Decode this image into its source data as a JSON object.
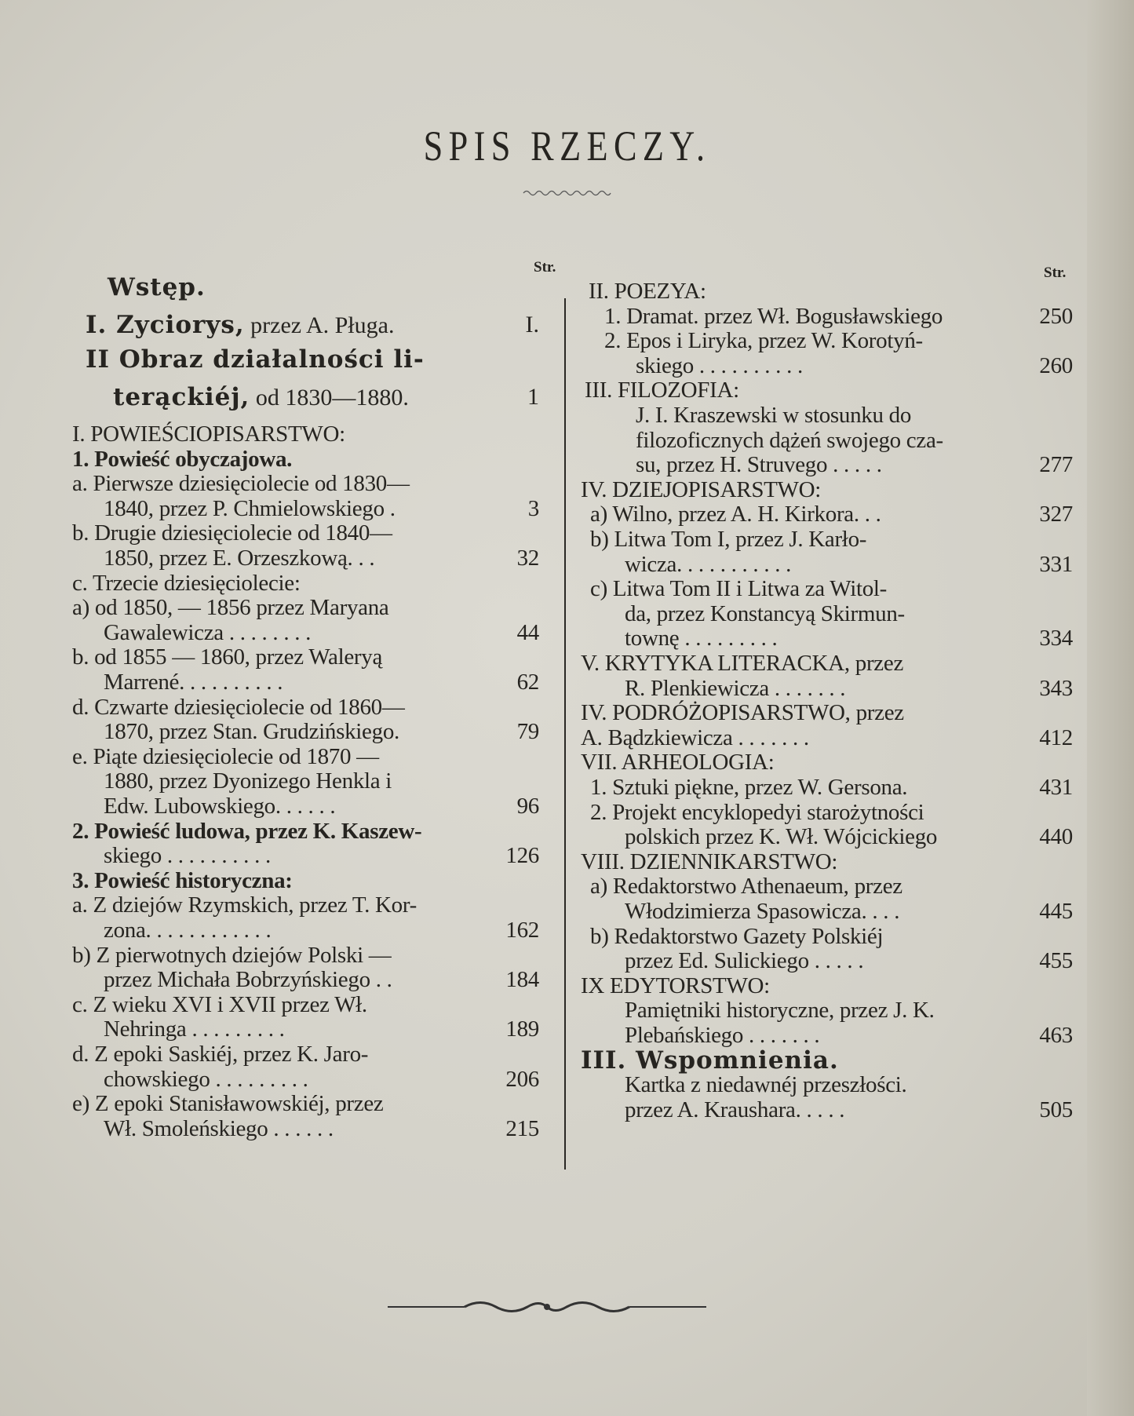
{
  "title": "SPIS RZECZY.",
  "page_label": "Str.",
  "left": [
    {
      "text": "Wstęp.",
      "page": "",
      "style": "h",
      "indent": 45
    },
    {
      "text": "I. Zyciorys,",
      "rest": " przez A. Pługa.",
      "page": "I.",
      "style": "h",
      "indent": 17
    },
    {
      "text": "II Obraz działalności li-",
      "page": "",
      "style": "h",
      "indent": 17
    },
    {
      "text": "terąckiéj,",
      "rest": " od 1830—1880.",
      "page": "1",
      "style": "h",
      "indent": 52
    },
    {
      "text": "I. POWIEŚCIOPISARSTWO:",
      "page": ""
    },
    {
      "text": "1. Powieść obyczajowa.",
      "page": "",
      "style": "b"
    },
    {
      "text": "a. Pierwsze dziesięciolecie od 1830—",
      "page": ""
    },
    {
      "text": "1840, przez P. Chmielowskiego  .",
      "page": "3",
      "indent": 40
    },
    {
      "text": "b. Drugie dziesięciolecie od 1840—",
      "page": ""
    },
    {
      "text": "1850, przez E. Orzeszkową. . .",
      "page": "32",
      "indent": 40
    },
    {
      "text": "c. Trzecie dziesięciolecie:",
      "page": ""
    },
    {
      "text": "a) od 1850, — 1856 przez Maryana",
      "page": ""
    },
    {
      "text": "Gawalewicza . . . . . . . .",
      "page": "44",
      "indent": 40
    },
    {
      "text": "b. od 1855 — 1860, przez Waleryą",
      "page": ""
    },
    {
      "text": "Marrené. . . . . . . . . .",
      "page": "62",
      "indent": 40
    },
    {
      "text": "d. Czwarte dziesięciolecie od 1860—",
      "page": ""
    },
    {
      "text": "1870, przez Stan. Grudzińskiego.",
      "page": "79",
      "indent": 40
    },
    {
      "text": "e. Piąte dziesięciolecie od 1870 —",
      "page": ""
    },
    {
      "text": "1880, przez Dyonizego Henkla i",
      "page": "",
      "indent": 40
    },
    {
      "text": "Edw. Lubowskiego. . . . . .",
      "page": "96",
      "indent": 40
    },
    {
      "text": "2. Powieść ludowa, przez K. Kaszew-",
      "page": "",
      "style": "b"
    },
    {
      "text": "skiego . . . . . . . . . .",
      "page": "126",
      "indent": 40
    },
    {
      "text": "3. Powieść historyczna:",
      "page": "",
      "style": "b"
    },
    {
      "text": "a. Z dziejów Rzymskich, przez T. Kor-",
      "page": ""
    },
    {
      "text": "zona. . . . . . . . . . . .",
      "page": "162",
      "indent": 40
    },
    {
      "text": "b) Z pierwotnych dziejów Polski —",
      "page": ""
    },
    {
      "text": "przez Michała Bobrzyńskiego  . .",
      "page": "184",
      "indent": 40
    },
    {
      "text": "c. Z wieku XVI i XVII przez Wł.",
      "page": ""
    },
    {
      "text": "Nehringa . . . . . . . . .",
      "page": "189",
      "indent": 40
    },
    {
      "text": "d. Z epoki Saskiéj, przez K. Jaro-",
      "page": ""
    },
    {
      "text": "chowskiego . . . . . . . . .",
      "page": "206",
      "indent": 40
    },
    {
      "text": "e) Z epoki Stanisławowskiéj, przez",
      "page": ""
    },
    {
      "text": "Wł. Smoleńskiego . . . . . .",
      "page": "215",
      "indent": 40
    }
  ],
  "right": [
    {
      "text": "II. POEZYA:",
      "page": "",
      "indent": 10
    },
    {
      "text": "1. Dramat. przez Wł. Bogusławskiego",
      "page": "250",
      "indent": 30
    },
    {
      "text": "2. Epos i Liryka, przez W. Korotyń-",
      "page": "",
      "indent": 30
    },
    {
      "text": "skiego . . . . . . . . . .",
      "page": "260",
      "indent": 70
    },
    {
      "text": "III. FILOZOFIA:",
      "page": "",
      "indent": 5
    },
    {
      "text": "J. I. Kraszewski w stosunku do",
      "page": "",
      "indent": 70
    },
    {
      "text": "filozoficznych dążeń swojego cza-",
      "page": "",
      "indent": 70
    },
    {
      "text": "su, przez H. Struvego . . . . .",
      "page": "277",
      "indent": 70
    },
    {
      "text": "IV. DZIEJOPISARSTWO:",
      "page": ""
    },
    {
      "text": "a) Wilno, przez A. H. Kirkora. . .",
      "page": "327",
      "indent": 12
    },
    {
      "text": "b) Litwa Tom I, przez J. Karło-",
      "page": "",
      "indent": 12
    },
    {
      "text": "wicza. . . . . . . . . . .",
      "page": "331",
      "indent": 56
    },
    {
      "text": "c) Litwa Tom II i Litwa za Witol-",
      "page": "",
      "indent": 12
    },
    {
      "text": "da, przez Konstancyą Skirmun-",
      "page": "",
      "indent": 56
    },
    {
      "text": "townę . . . . . . . . .",
      "page": "334",
      "indent": 56
    },
    {
      "text": "V. KRYTYKA LITERACKA, przez",
      "page": ""
    },
    {
      "text": "R. Plenkiewicza . . . . . . .",
      "page": "343",
      "indent": 56
    },
    {
      "text": "IV. PODRÓŻOPISARSTWO, przez",
      "page": ""
    },
    {
      "text": "A. Bądzkiewicza . . . . . . .",
      "page": "412",
      "indent": 0
    },
    {
      "text": "VII. ARHEOLOGIA:",
      "page": ""
    },
    {
      "text": "1. Sztuki piękne, przez W. Gersona.",
      "page": "431",
      "indent": 12
    },
    {
      "text": "2. Projekt encyklopedyi starożytności",
      "page": "",
      "indent": 12
    },
    {
      "text": "polskich przez K. Wł. Wójcickiego",
      "page": "440",
      "indent": 56
    },
    {
      "text": "VIII. DZIENNIKARSTWO:",
      "page": ""
    },
    {
      "text": "a) Redaktorstwo Athenaeum, przez",
      "page": "",
      "indent": 12
    },
    {
      "text": "Włodzimierza Spasowicza. . . .",
      "page": "445",
      "indent": 56
    },
    {
      "text": "b) Redaktorstwo Gazety Polskiéj",
      "page": "",
      "indent": 12
    },
    {
      "text": "przez Ed. Sulickiego . . . . .",
      "page": "455",
      "indent": 56
    },
    {
      "text": "IX EDYTORSTWO:",
      "page": ""
    },
    {
      "text": "Pamiętniki historyczne, przez J. K.",
      "page": "",
      "indent": 56
    },
    {
      "text": "Plebańskiego . . . . . . .",
      "page": "463",
      "indent": 56
    },
    {
      "text": "III. Wspomnienia.",
      "page": "",
      "style": "h",
      "indent": 0
    },
    {
      "text": "Kartka z niedawnéj przeszłości.",
      "page": "",
      "indent": 56
    },
    {
      "text": "przez A. Kraushara. . . . .",
      "page": "505",
      "indent": 56
    }
  ]
}
